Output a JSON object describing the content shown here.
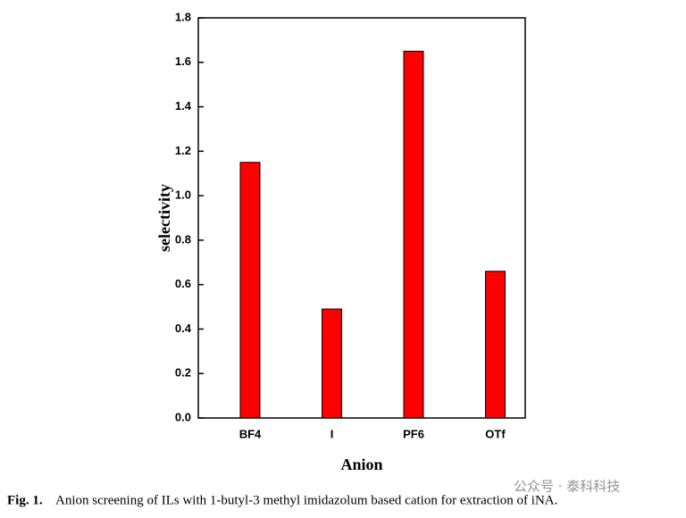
{
  "chart_data": {
    "type": "bar",
    "x_label": "Anion",
    "y_label": "selectivity",
    "categories": [
      "BF4",
      "I",
      "PF6",
      "OTf"
    ],
    "values": [
      1.15,
      0.49,
      1.65,
      0.66
    ],
    "color": "#ff0000",
    "ylim": [
      0,
      1.8
    ],
    "yticks": [
      {
        "value": 0,
        "label": "0.0"
      },
      0.2,
      0.4,
      0.6,
      0.8,
      {
        "value": 1,
        "label": "1.0"
      },
      1.2,
      1.4,
      1.6,
      1.8
    ],
    "grid": false
  },
  "caption": {
    "label": "Fig. 1.",
    "text": "Anion screening of ILs with 1-butyl-3 methyl imidazolum based cation for extraction of iNA."
  },
  "watermark": "公众号 · 泰科科技"
}
